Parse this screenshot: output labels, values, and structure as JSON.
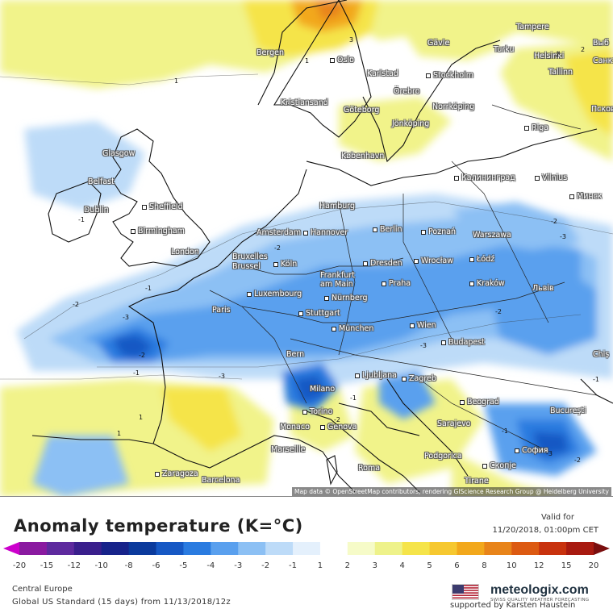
{
  "title": "Anomaly temperature (K=°C)",
  "valid_for_label": "Valid for",
  "valid_for_date": "11/20/2018, 01:00pm CET",
  "region": "Central Europe",
  "model_run": "Global US Standard (15 days) from 11/13/2018/12z",
  "supported_by": "supported by Karsten Haustein",
  "logo": {
    "name": "meteologix.com",
    "tagline": "SWISS QUALITY WEATHER FORECASTING"
  },
  "attribution": "Map data © OpenStreetMap contributors, rendering GIScience Research Group @ Heidelberg University",
  "colors": {
    "anomaly_scale": [
      "#cc00cc",
      "#8a1aa0",
      "#5e2a9e",
      "#3a1f8c",
      "#17238a",
      "#0b3a9c",
      "#1658c4",
      "#2a7be0",
      "#5aa0ee",
      "#8cc0f4",
      "#bddbf8",
      "#e4f0fc",
      "#ffffff",
      "#f6fbc8",
      "#eef28a",
      "#f5e44a",
      "#f6c830",
      "#f2a81c",
      "#e8841a",
      "#dc5a12",
      "#c8320e",
      "#a81a10",
      "#7a0e0e"
    ],
    "ocean": "#ffffff",
    "coastline": "#111111"
  },
  "legend": {
    "ticks": [
      "-20",
      "-15",
      "-12",
      "-10",
      "-8",
      "-6",
      "-5",
      "-4",
      "-3",
      "-2",
      "-1",
      "1",
      "2",
      "3",
      "4",
      "5",
      "6",
      "8",
      "10",
      "12",
      "15",
      "20"
    ]
  },
  "cities": [
    {
      "name": "Bergen"
    },
    {
      "name": "Oslo"
    },
    {
      "name": "Gävle"
    },
    {
      "name": "Turku"
    },
    {
      "name": "Tampere"
    },
    {
      "name": "Helsinki"
    },
    {
      "name": "Tallinn"
    },
    {
      "name": "Выб"
    },
    {
      "name": "Санкт"
    },
    {
      "name": "Псков"
    },
    {
      "name": "Karlstad"
    },
    {
      "name": "Stockholm"
    },
    {
      "name": "Örebro"
    },
    {
      "name": "Norrköping"
    },
    {
      "name": "Kristiansand"
    },
    {
      "name": "Göteborg"
    },
    {
      "name": "Jönköping"
    },
    {
      "name": "Riga"
    },
    {
      "name": "København"
    },
    {
      "name": "Калининград"
    },
    {
      "name": "Vilnius"
    },
    {
      "name": "Минск"
    },
    {
      "name": "Glasgow"
    },
    {
      "name": "Belfast"
    },
    {
      "name": "Dublin"
    },
    {
      "name": "Sheffield"
    },
    {
      "name": "Birmingham"
    },
    {
      "name": "London"
    },
    {
      "name": "Hamburg"
    },
    {
      "name": "Amsterdam"
    },
    {
      "name": "Hannover"
    },
    {
      "name": "Berlin"
    },
    {
      "name": "Poznań"
    },
    {
      "name": "Warszawa"
    },
    {
      "name": "Bruxelles"
    },
    {
      "name": "Brussel"
    },
    {
      "name": "Köln"
    },
    {
      "name": "Dresden"
    },
    {
      "name": "Wrocław"
    },
    {
      "name": "Łódź"
    },
    {
      "name": "Frankfurt"
    },
    {
      "name": "am Main"
    },
    {
      "name": "Luxembourg"
    },
    {
      "name": "Praha"
    },
    {
      "name": "Kraków"
    },
    {
      "name": "Львів"
    },
    {
      "name": "Nürnberg"
    },
    {
      "name": "Paris"
    },
    {
      "name": "Stuttgart"
    },
    {
      "name": "München"
    },
    {
      "name": "Wien"
    },
    {
      "name": "Budapest"
    },
    {
      "name": "Bern"
    },
    {
      "name": "Chiș"
    },
    {
      "name": "Ljubljana"
    },
    {
      "name": "Zagreb"
    },
    {
      "name": "Milano"
    },
    {
      "name": "Torino"
    },
    {
      "name": "Beograd"
    },
    {
      "name": "Bucureşti"
    },
    {
      "name": "Monaco"
    },
    {
      "name": "Genova"
    },
    {
      "name": "Sarajevo"
    },
    {
      "name": "Marseille"
    },
    {
      "name": "Podgorica"
    },
    {
      "name": "София"
    },
    {
      "name": "Скопје"
    },
    {
      "name": "Zaragoza"
    },
    {
      "name": "Barcelona"
    },
    {
      "name": "Roma"
    },
    {
      "name": "Tirane"
    }
  ],
  "isoline_labels": [
    {
      "text": "1"
    },
    {
      "text": "2"
    },
    {
      "text": "3"
    },
    {
      "text": "1"
    },
    {
      "text": "2"
    },
    {
      "text": "-2"
    },
    {
      "text": "-3"
    },
    {
      "text": "-1"
    },
    {
      "text": "-2"
    },
    {
      "text": "-3"
    },
    {
      "text": "-1"
    },
    {
      "text": "-2"
    },
    {
      "text": "-3"
    },
    {
      "text": "-1"
    },
    {
      "text": "-2"
    },
    {
      "text": "-2"
    },
    {
      "text": "-1"
    },
    {
      "text": "-3"
    },
    {
      "text": "-2"
    },
    {
      "text": "-1"
    },
    {
      "text": "-3"
    },
    {
      "text": "-2"
    },
    {
      "text": "1"
    },
    {
      "text": "1"
    },
    {
      "text": "-1"
    }
  ]
}
